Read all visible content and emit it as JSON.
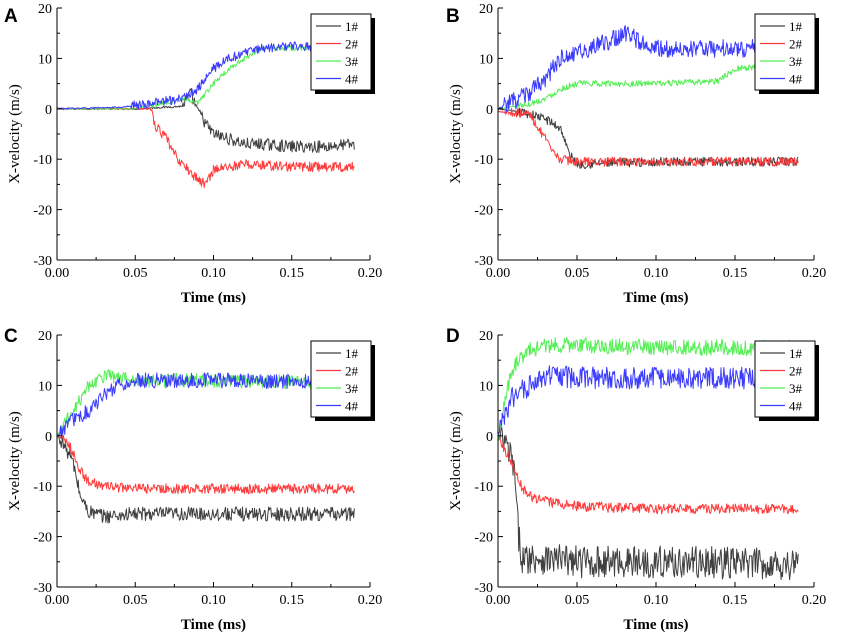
{
  "colors": {
    "1#": "#404040",
    "2#": "#ff3b3b",
    "3#": "#55ee55",
    "4#": "#3b3bff"
  },
  "legend_labels": [
    "1#",
    "2#",
    "3#",
    "4#"
  ],
  "chart_data": [
    {
      "type": "line",
      "panel": "A",
      "xlabel": "Time (ms)",
      "ylabel": "X-velocity (m/s)",
      "xlim": [
        0.0,
        0.2
      ],
      "ylim": [
        -30,
        20
      ],
      "xticks": [
        "0.00",
        "0.05",
        "0.10",
        "0.15",
        "0.20"
      ],
      "yticks": [
        "20",
        "10",
        "0",
        "-10",
        "-20",
        "-30"
      ],
      "legend_position": "top-right",
      "series": [
        {
          "name": "1#",
          "x": [
            0.0,
            0.05,
            0.08,
            0.085,
            0.09,
            0.095,
            0.1,
            0.11,
            0.12,
            0.13,
            0.15,
            0.17,
            0.19
          ],
          "y": [
            0,
            0,
            0.5,
            3,
            0,
            -3,
            -5,
            -6,
            -7,
            -7,
            -7.5,
            -7.5,
            -7
          ],
          "noise": 1.2
        },
        {
          "name": "2#",
          "x": [
            0.0,
            0.06,
            0.062,
            0.07,
            0.075,
            0.08,
            0.09,
            0.095,
            0.1,
            0.12,
            0.15,
            0.19
          ],
          "y": [
            0,
            0,
            -3,
            -6,
            -9,
            -11,
            -14,
            -15,
            -12,
            -11,
            -11.5,
            -11.5
          ],
          "noise": 1.0
        },
        {
          "name": "3#",
          "x": [
            0.0,
            0.05,
            0.08,
            0.09,
            0.1,
            0.11,
            0.12,
            0.13,
            0.15,
            0.19
          ],
          "y": [
            0,
            0,
            2,
            1,
            5,
            8,
            10,
            12,
            12,
            12
          ],
          "noise": 0.5
        },
        {
          "name": "4#",
          "x": [
            0.0,
            0.04,
            0.08,
            0.09,
            0.1,
            0.11,
            0.12,
            0.13,
            0.15,
            0.19
          ],
          "y": [
            0,
            0.3,
            2,
            4,
            8,
            10,
            11,
            12,
            12.5,
            12
          ],
          "noise": 0.9
        }
      ]
    },
    {
      "type": "line",
      "panel": "B",
      "xlabel": "Time (ms)",
      "ylabel": "X-velocity (m/s)",
      "xlim": [
        0.0,
        0.2
      ],
      "ylim": [
        -30,
        20
      ],
      "xticks": [
        "0.00",
        "0.05",
        "0.10",
        "0.15",
        "0.20"
      ],
      "yticks": [
        "20",
        "10",
        "0",
        "-10",
        "-20",
        "-30"
      ],
      "legend_position": "top-right",
      "series": [
        {
          "name": "1#",
          "x": [
            0.0,
            0.02,
            0.03,
            0.04,
            0.045,
            0.05,
            0.1,
            0.19
          ],
          "y": [
            0,
            -1,
            -2,
            -4,
            -9,
            -11,
            -10.5,
            -10.5
          ],
          "noise": 0.9
        },
        {
          "name": "2#",
          "x": [
            0.0,
            0.02,
            0.03,
            0.035,
            0.04,
            0.05,
            0.1,
            0.19
          ],
          "y": [
            -0.5,
            -1,
            -6,
            -9,
            -10,
            -10.5,
            -10.5,
            -10.5
          ],
          "noise": 0.9
        },
        {
          "name": "3#",
          "x": [
            0.0,
            0.02,
            0.03,
            0.04,
            0.05,
            0.1,
            0.14,
            0.15,
            0.19
          ],
          "y": [
            0,
            1,
            2,
            4,
            5,
            5,
            5.5,
            8,
            9
          ],
          "noise": 0.6
        },
        {
          "name": "4#",
          "x": [
            0.0,
            0.02,
            0.03,
            0.04,
            0.06,
            0.08,
            0.1,
            0.19
          ],
          "y": [
            0,
            3,
            6,
            10,
            12,
            15,
            12,
            12
          ],
          "noise": 1.8
        }
      ]
    },
    {
      "type": "line",
      "panel": "C",
      "xlabel": "Time (ms)",
      "ylabel": "X-velocity (m/s)",
      "xlim": [
        0.0,
        0.2
      ],
      "ylim": [
        -30,
        20
      ],
      "xticks": [
        "0.00",
        "0.05",
        "0.10",
        "0.15",
        "0.20"
      ],
      "yticks": [
        "20",
        "10",
        "0",
        "-10",
        "-20",
        "-30"
      ],
      "legend_position": "top-right",
      "series": [
        {
          "name": "1#",
          "x": [
            0.0,
            0.003,
            0.01,
            0.015,
            0.02,
            0.03,
            0.05,
            0.1,
            0.19
          ],
          "y": [
            0,
            -1,
            -5,
            -12,
            -15,
            -16,
            -15.5,
            -15.5,
            -15.5
          ],
          "noise": 1.4
        },
        {
          "name": "2#",
          "x": [
            0.0,
            0.005,
            0.01,
            0.015,
            0.02,
            0.03,
            0.05,
            0.1,
            0.19
          ],
          "y": [
            0,
            -1,
            -3,
            -7,
            -9,
            -10,
            -10.5,
            -10.5,
            -10.5
          ],
          "noise": 1.0
        },
        {
          "name": "3#",
          "x": [
            0.0,
            0.01,
            0.02,
            0.03,
            0.05,
            0.1,
            0.19
          ],
          "y": [
            0,
            5,
            10,
            12,
            11,
            11,
            10.5
          ],
          "noise": 1.4
        },
        {
          "name": "4#",
          "x": [
            0.0,
            0.01,
            0.02,
            0.03,
            0.04,
            0.05,
            0.1,
            0.19
          ],
          "y": [
            0,
            3,
            5,
            8,
            10,
            11,
            11,
            10.5
          ],
          "noise": 1.5
        }
      ]
    },
    {
      "type": "line",
      "panel": "D",
      "xlabel": "Time (ms)",
      "ylabel": "X-velocity (m/s)",
      "xlim": [
        0.0,
        0.2
      ],
      "ylim": [
        -30,
        20
      ],
      "xticks": [
        "0.00",
        "0.05",
        "0.10",
        "0.15",
        "0.20"
      ],
      "yticks": [
        "20",
        "10",
        "0",
        "-10",
        "-20",
        "-30"
      ],
      "legend_position": "top-right",
      "series": [
        {
          "name": "1#",
          "x": [
            0.0,
            0.005,
            0.01,
            0.013,
            0.016,
            0.02,
            0.05,
            0.1,
            0.19
          ],
          "y": [
            0,
            -2,
            -6,
            -20,
            -25,
            -24,
            -25,
            -25,
            -25.5
          ],
          "noise": 3.2
        },
        {
          "name": "2#",
          "x": [
            0.0,
            0.005,
            0.01,
            0.015,
            0.02,
            0.03,
            0.05,
            0.1,
            0.19
          ],
          "y": [
            0,
            -3,
            -6,
            -10,
            -12,
            -13,
            -14,
            -14.5,
            -14.5
          ],
          "noise": 1.0
        },
        {
          "name": "3#",
          "x": [
            0.0,
            0.005,
            0.01,
            0.02,
            0.03,
            0.05,
            0.1,
            0.19
          ],
          "y": [
            0,
            8,
            14,
            17,
            18,
            18,
            17.5,
            17.5
          ],
          "noise": 1.6
        },
        {
          "name": "4#",
          "x": [
            0.0,
            0.005,
            0.01,
            0.02,
            0.03,
            0.05,
            0.1,
            0.19
          ],
          "y": [
            0,
            5,
            8,
            10,
            12,
            11.5,
            11.5,
            11.5
          ],
          "noise": 2.2
        }
      ]
    }
  ]
}
